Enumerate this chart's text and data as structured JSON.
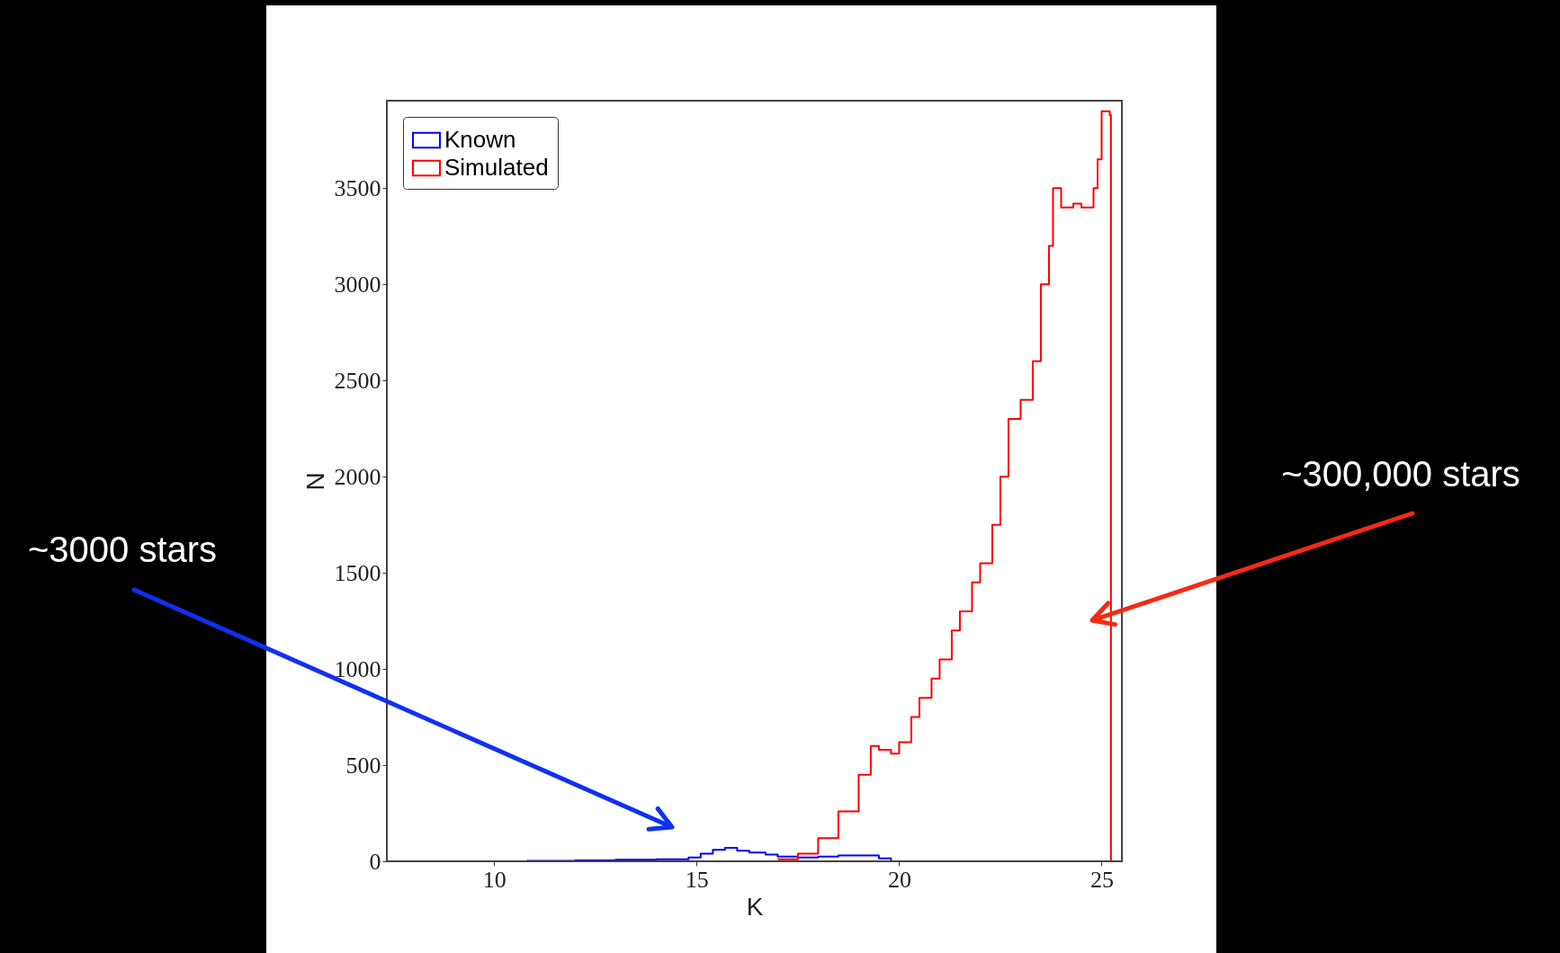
{
  "chart_data": {
    "type": "step",
    "xlabel": "K",
    "ylabel": "N",
    "xlim": [
      7.35,
      25.5
    ],
    "ylim": [
      0,
      3955
    ],
    "xticks": [
      10,
      15,
      20,
      25
    ],
    "yticks": [
      0,
      500,
      1000,
      1500,
      2000,
      2500,
      3000,
      3500
    ],
    "grid": false,
    "legend": "top left",
    "annotations": [
      "~3000 stars",
      "~300,000 stars"
    ],
    "series": [
      {
        "name": "Known",
        "color": "#0000ff",
        "x": [
          10.8,
          12,
          13,
          14,
          14.8,
          15.1,
          15.4,
          15.7,
          16,
          16.3,
          16.7,
          17,
          17.5,
          18,
          18.5,
          19,
          19.5,
          19.8
        ],
        "values": [
          2,
          5,
          8,
          10,
          20,
          40,
          60,
          70,
          55,
          45,
          35,
          25,
          20,
          25,
          30,
          30,
          15,
          0
        ]
      },
      {
        "name": "Simulated",
        "color": "#ff0000",
        "x": [
          17,
          17.5,
          18,
          18.5,
          19,
          19.3,
          19.5,
          19.8,
          20,
          20.3,
          20.5,
          20.8,
          21,
          21.3,
          21.5,
          21.8,
          22,
          22.3,
          22.5,
          22.7,
          23,
          23.3,
          23.5,
          23.7,
          23.8,
          24,
          24.3,
          24.5,
          24.8,
          24.9,
          25.0,
          25.2,
          25.23
        ],
        "values": [
          10,
          40,
          120,
          260,
          450,
          600,
          580,
          560,
          620,
          750,
          850,
          950,
          1050,
          1200,
          1300,
          1450,
          1550,
          1750,
          2000,
          2300,
          2400,
          2600,
          3000,
          3200,
          3500,
          3400,
          3420,
          3400,
          3500,
          3650,
          3900,
          3880,
          0
        ]
      }
    ]
  }
}
